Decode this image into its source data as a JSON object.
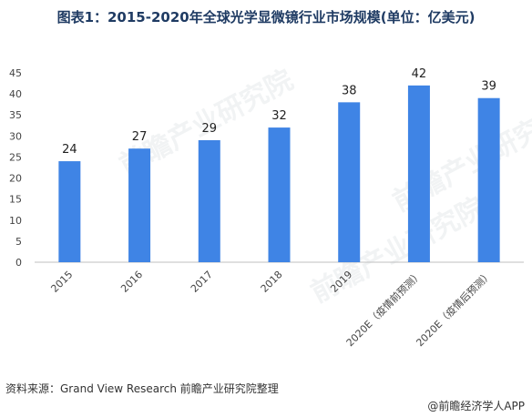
{
  "header": {
    "title": "图表1：2015-2020年全球光学显微镜行业市场规模(单位：亿美元)"
  },
  "chart_data": {
    "type": "bar",
    "categories": [
      "2015",
      "2016",
      "2017",
      "2018",
      "2019",
      "2020E（疫情前预测）",
      "2020E（疫情后预测）"
    ],
    "values": [
      24,
      27,
      29,
      32,
      38,
      42,
      39
    ],
    "ylim": [
      0,
      45
    ],
    "yticks": [
      0,
      5,
      10,
      15,
      20,
      25,
      30,
      35,
      40,
      45
    ],
    "grid": false,
    "bar_color": "#3f84e5"
  },
  "footer": {
    "source": "资料来源：Grand View Research 前瞻产业研究院整理",
    "credit": "@前瞻经济学人APP"
  },
  "watermark": {
    "text": "前瞻产业研究院"
  }
}
